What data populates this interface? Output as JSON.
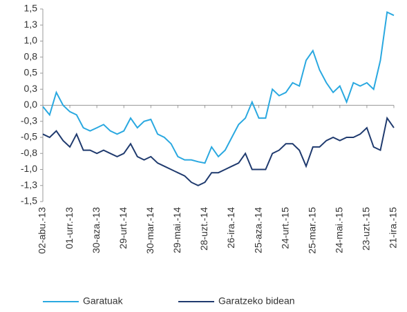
{
  "chart_data": {
    "type": "line",
    "categories": [
      "02-abu.-13",
      null,
      null,
      null,
      "01-urr.-13",
      null,
      null,
      null,
      "30-aza.-13",
      null,
      null,
      null,
      "29-urt.-14",
      null,
      null,
      null,
      "30-mar.-14",
      null,
      null,
      null,
      "29-mai.-14",
      null,
      null,
      null,
      "28-uzt.-14",
      null,
      null,
      null,
      "26-ira.-14",
      null,
      null,
      null,
      "25-aza.-14",
      null,
      null,
      null,
      "24-urt.-15",
      null,
      null,
      null,
      "25-mar.-15",
      null,
      null,
      null,
      "24-mai.-15",
      null,
      null,
      null,
      "23-uzt.-15",
      null,
      null,
      null,
      "21-ira.-15"
    ],
    "series": [
      {
        "name": "Garatuak",
        "color": "#29a8e0",
        "values": [
          -0.02,
          -0.15,
          0.2,
          0.0,
          -0.1,
          -0.15,
          -0.35,
          -0.4,
          -0.35,
          -0.3,
          -0.4,
          -0.45,
          -0.4,
          -0.2,
          -0.35,
          -0.25,
          -0.22,
          -0.45,
          -0.5,
          -0.6,
          -0.8,
          -0.85,
          -0.85,
          -0.88,
          -0.9,
          -0.65,
          -0.8,
          -0.7,
          -0.5,
          -0.3,
          -0.2,
          0.05,
          -0.2,
          -0.2,
          0.25,
          0.15,
          0.2,
          0.35,
          0.3,
          0.7,
          0.85,
          0.55,
          0.35,
          0.2,
          0.3,
          0.05,
          0.35,
          0.3,
          0.35,
          0.25,
          0.7,
          1.45,
          1.4
        ]
      },
      {
        "name": "Garatzeko bidean",
        "color": "#1f3a6e",
        "values": [
          -0.45,
          -0.5,
          -0.4,
          -0.55,
          -0.65,
          -0.45,
          -0.7,
          -0.7,
          -0.75,
          -0.7,
          -0.75,
          -0.8,
          -0.75,
          -0.6,
          -0.8,
          -0.85,
          -0.8,
          -0.9,
          -0.95,
          -1.0,
          -1.05,
          -1.1,
          -1.2,
          -1.25,
          -1.2,
          -1.05,
          -1.05,
          -1.0,
          -0.95,
          -0.9,
          -0.75,
          -1.0,
          -1.0,
          -1.0,
          -0.75,
          -0.7,
          -0.6,
          -0.6,
          -0.7,
          -0.95,
          -0.65,
          -0.65,
          -0.55,
          -0.5,
          -0.55,
          -0.5,
          -0.5,
          -0.45,
          -0.35,
          -0.65,
          -0.7,
          -0.2,
          -0.35
        ]
      }
    ],
    "ylim": [
      -1.5,
      1.5
    ],
    "yticks": [
      {
        "value": 1.5,
        "label": "1,5"
      },
      {
        "value": 1.25,
        "label": "1,3"
      },
      {
        "value": 1.0,
        "label": "1,0"
      },
      {
        "value": 0.75,
        "label": "0,8"
      },
      {
        "value": 0.5,
        "label": "0,5"
      },
      {
        "value": 0.25,
        "label": "0,3"
      },
      {
        "value": 0,
        "label": "0,0"
      },
      {
        "value": -0.25,
        "label": "-0,3"
      },
      {
        "value": -0.5,
        "label": "-0,5"
      },
      {
        "value": -0.75,
        "label": "-0,8"
      },
      {
        "value": -1.0,
        "label": "-1,0"
      },
      {
        "value": -1.25,
        "label": "-1,3"
      },
      {
        "value": -1.5,
        "label": "-1,5"
      }
    ],
    "grid": false,
    "legend": "bottom"
  }
}
